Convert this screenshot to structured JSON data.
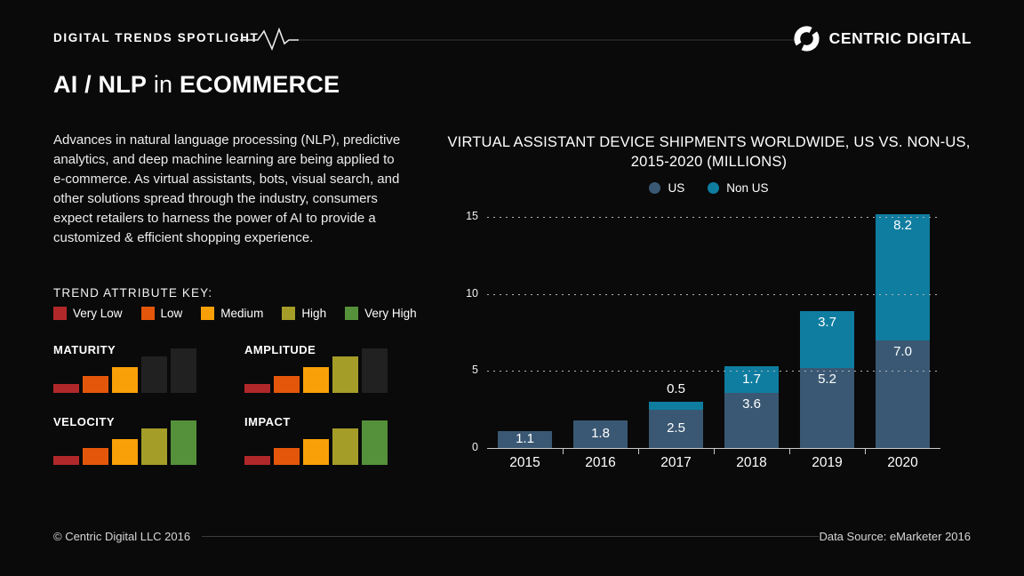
{
  "page": {
    "eyebrow": "DIGITAL TRENDS SPOTLIGHT",
    "brand": "CENTRIC DIGITAL",
    "title_main": "AI / NLP",
    "title_connector": "in",
    "title_suffix": "ECOMMERCE",
    "intro": "Advances in natural language processing (NLP), predictive analytics, and deep machine learning are being applied to e-commerce.  As virtual assistants, bots, visual search, and other solutions spread through the industry, consumers expect retailers to harness the power of AI to provide a customized & efficient shopping experience.",
    "footer_left": "© Centric Digital LLC 2016",
    "footer_right": "Data Source: eMarketer 2016"
  },
  "attribute_key": {
    "title": "TREND ATTRIBUTE KEY:",
    "levels": [
      {
        "label": "Very Low",
        "color": "#b1282a"
      },
      {
        "label": "Low",
        "color": "#e4570a"
      },
      {
        "label": "Medium",
        "color": "#f9a008"
      },
      {
        "label": "High",
        "color": "#a49d28"
      },
      {
        "label": "Very High",
        "color": "#55913a"
      }
    ],
    "inactive_color": "#212121"
  },
  "attributes": [
    {
      "name": "MATURITY",
      "level": 3,
      "level_label": "Medium"
    },
    {
      "name": "AMPLITUDE",
      "level": 4,
      "level_label": "High"
    },
    {
      "name": "VELOCITY",
      "level": 5,
      "level_label": "Very High"
    },
    {
      "name": "IMPACT",
      "level": 5,
      "level_label": "Very High"
    }
  ],
  "chart_data": {
    "type": "bar",
    "variant": "stacked-column",
    "title": "VIRTUAL ASSISTANT DEVICE SHIPMENTS WORLDWIDE, US VS. NON-US, 2015-2020 (MILLIONS)",
    "title_lines": [
      "VIRTUAL ASSISTANT DEVICE SHIPMENTS WORLDWIDE, US VS. NON-US,",
      "2015-2020 (MILLIONS)"
    ],
    "categories": [
      "2015",
      "2016",
      "2017",
      "2018",
      "2019",
      "2020"
    ],
    "series": [
      {
        "name": "US",
        "color": "#3a5873",
        "values": [
          1.1,
          1.8,
          2.5,
          3.6,
          5.2,
          7.0
        ]
      },
      {
        "name": "Non US",
        "color": "#0f7da0",
        "values": [
          0,
          0,
          0.5,
          1.7,
          3.7,
          8.2
        ]
      }
    ],
    "totals": [
      1.1,
      1.8,
      3.0,
      5.3,
      8.9,
      15.2
    ],
    "ylim": [
      0,
      15
    ],
    "yticks": [
      0,
      5,
      10,
      15
    ],
    "gridlines": "dotted-horizontal",
    "legend_position": "top-center",
    "bar_label_color": "#ffffff"
  }
}
